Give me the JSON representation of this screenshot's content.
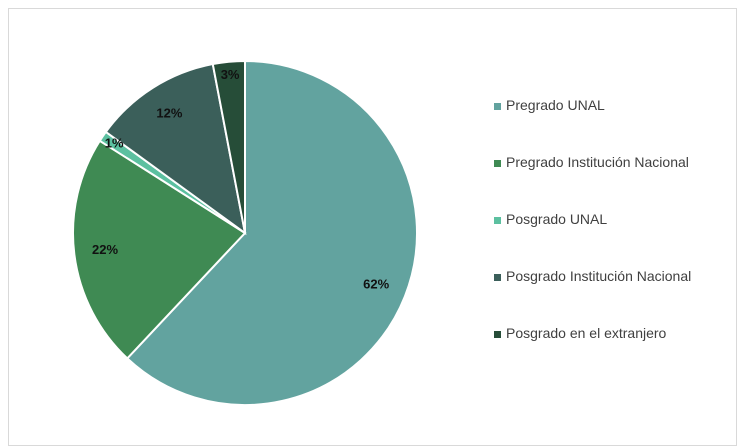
{
  "chart_data": {
    "type": "pie",
    "categories": [
      "Pregrado UNAL",
      "Pregrado Institución Nacional",
      "Posgrado UNAL",
      "Posgrado Institución Nacional",
      "Posgrado en el extranjero"
    ],
    "values": [
      62,
      22,
      1,
      12,
      3
    ],
    "value_labels": [
      "62%",
      "22%",
      "1%",
      "12%",
      "3%"
    ],
    "colors": [
      "#62a39f",
      "#3f8a53",
      "#5cc0a0",
      "#3b5f5a",
      "#264d38"
    ],
    "legend": "right"
  }
}
